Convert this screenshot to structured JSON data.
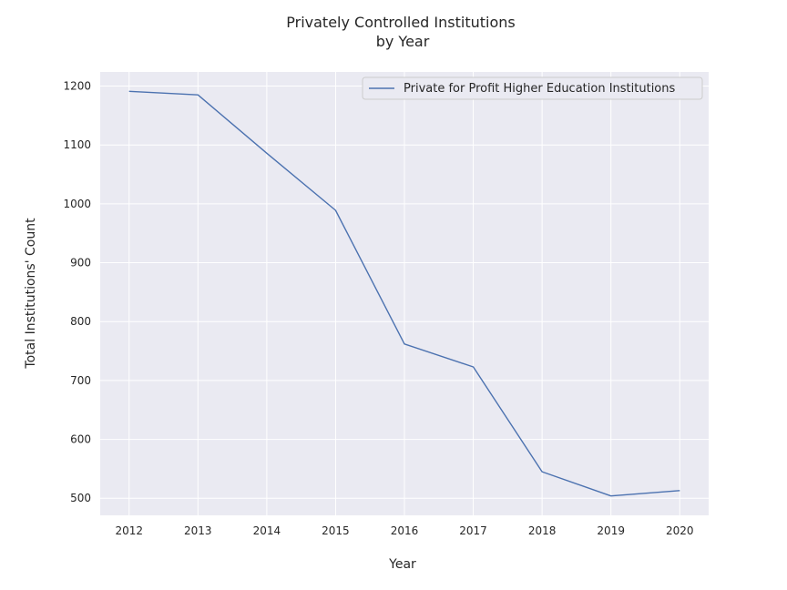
{
  "chart_data": {
    "type": "line",
    "title_line1": "Privately Controlled Institutions",
    "title_line2": "by Year",
    "xlabel": "Year",
    "ylabel": "Total Institutions' Count",
    "x": [
      2012,
      2013,
      2014,
      2015,
      2016,
      2017,
      2018,
      2019,
      2020
    ],
    "x_tick_labels": [
      "2012",
      "2013",
      "2014",
      "2015",
      "2016",
      "2017",
      "2018",
      "2019",
      "2020"
    ],
    "y_ticks": [
      500,
      600,
      700,
      800,
      900,
      1000,
      1100,
      1200
    ],
    "y_tick_labels": [
      "500",
      "600",
      "700",
      "800",
      "900",
      "1000",
      "1100",
      "1200"
    ],
    "xlim": [
      2011.58,
      2020.42
    ],
    "ylim": [
      471,
      1224
    ],
    "series": [
      {
        "name": "Private for Profit Higher Education Institutions",
        "color": "#4c72b0",
        "values": [
          1191,
          1185,
          1086,
          989,
          762,
          723,
          545,
          504,
          513
        ]
      }
    ],
    "legend_position": "top-right",
    "grid": true,
    "background": "#eaeaf2"
  }
}
